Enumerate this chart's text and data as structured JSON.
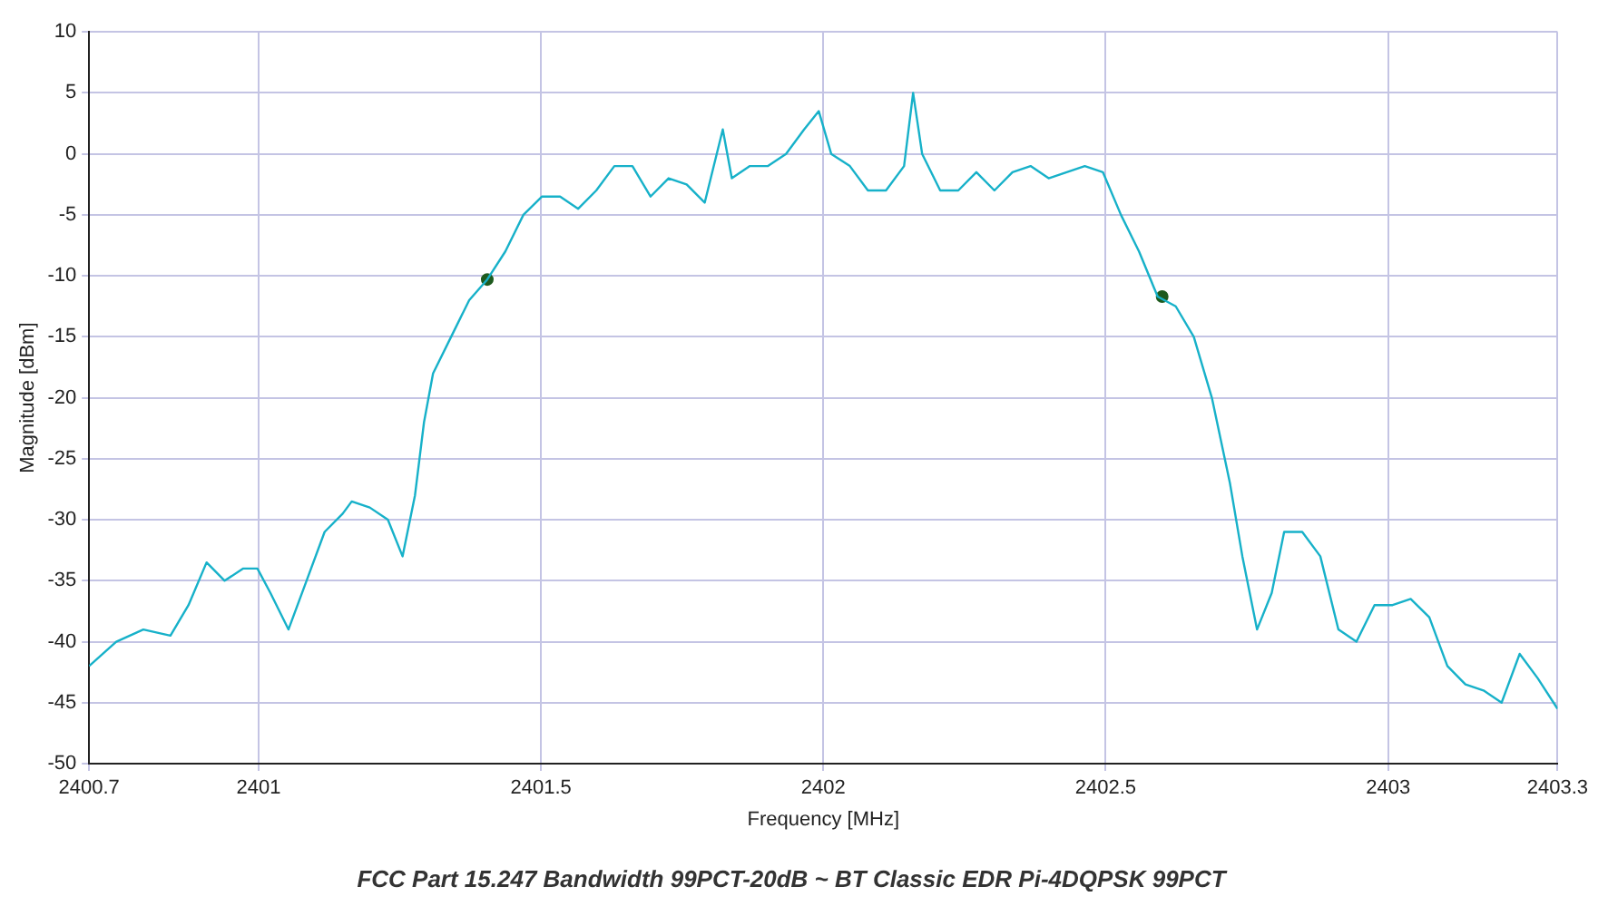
{
  "chart_data": {
    "type": "line",
    "title": "FCC Part 15.247 Bandwidth 99PCT-20dB ~ BT Classic EDR Pi-4DQPSK 99PCT",
    "xlabel": "Frequency [MHz]",
    "ylabel": "Magnitude [dBm]",
    "xlim": [
      2400.7,
      2403.3
    ],
    "xticks": [
      2400.7,
      2401,
      2401.5,
      2402,
      2402.5,
      2403,
      2403.3
    ],
    "ylim": [
      -50,
      10
    ],
    "yticks": [
      -50,
      -45,
      -40,
      -35,
      -30,
      -25,
      -20,
      -15,
      -10,
      -5,
      0,
      5,
      10
    ],
    "grid": true,
    "legend": false,
    "series": [
      {
        "type": "line",
        "color": "#17b1c9",
        "marker": "none",
        "x": [
          2400.7,
          2400.748,
          2400.796,
          2400.844,
          2400.876,
          2400.908,
          2400.94,
          2400.973,
          2400.998,
          2401.021,
          2401.053,
          2401.085,
          2401.117,
          2401.149,
          2401.165,
          2401.197,
          2401.229,
          2401.255,
          2401.277,
          2401.293,
          2401.309,
          2401.341,
          2401.373,
          2401.405,
          2401.437,
          2401.469,
          2401.502,
          2401.534,
          2401.566,
          2401.598,
          2401.63,
          2401.662,
          2401.694,
          2401.726,
          2401.758,
          2401.79,
          2401.822,
          2401.838,
          2401.87,
          2401.902,
          2401.934,
          2401.966,
          2401.992,
          2402.014,
          2402.047,
          2402.079,
          2402.111,
          2402.143,
          2402.159,
          2402.175,
          2402.207,
          2402.239,
          2402.271,
          2402.303,
          2402.335,
          2402.367,
          2402.399,
          2402.431,
          2402.463,
          2402.495,
          2402.527,
          2402.559,
          2402.592,
          2402.624,
          2402.656,
          2402.688,
          2402.72,
          2402.742,
          2402.768,
          2402.794,
          2402.816,
          2402.848,
          2402.88,
          2402.912,
          2402.944,
          2402.976,
          2403.008,
          2403.04,
          2403.073,
          2403.105,
          2403.137,
          2403.169,
          2403.201,
          2403.233,
          2403.265,
          2403.3
        ],
        "values": [
          -42,
          -40,
          -39,
          -39.5,
          -37,
          -33.5,
          -35,
          -34,
          -34,
          -36,
          -39,
          -35,
          -31,
          -29.5,
          -28.5,
          -29,
          -30,
          -33,
          -28,
          -22,
          -18,
          -15,
          -12,
          -10.3,
          -8,
          -5,
          -3.5,
          -3.5,
          -4.5,
          -3,
          -1,
          -1,
          -3.5,
          -2,
          -2.5,
          -4,
          2,
          -2,
          -1,
          -1,
          0,
          2,
          3.5,
          0,
          -1,
          -3,
          -3,
          -1,
          5,
          0,
          -3,
          -3,
          -1.5,
          -3,
          -1.5,
          -1,
          -2,
          -1.5,
          -1,
          -1.5,
          -5,
          -8,
          -11.7,
          -12.5,
          -15,
          -20,
          -27,
          -33,
          -39,
          -36,
          -31,
          -31,
          -33,
          -39,
          -40,
          -37,
          -37,
          -36.5,
          -38,
          -42,
          -43.5,
          -44,
          -45,
          -41,
          -43,
          -45.5
        ]
      },
      {
        "type": "scatter",
        "color": "#1e5a1e",
        "marker": "circle",
        "x": [
          2401.405,
          2402.6
        ],
        "values": [
          -10.3,
          -11.7
        ]
      }
    ]
  }
}
